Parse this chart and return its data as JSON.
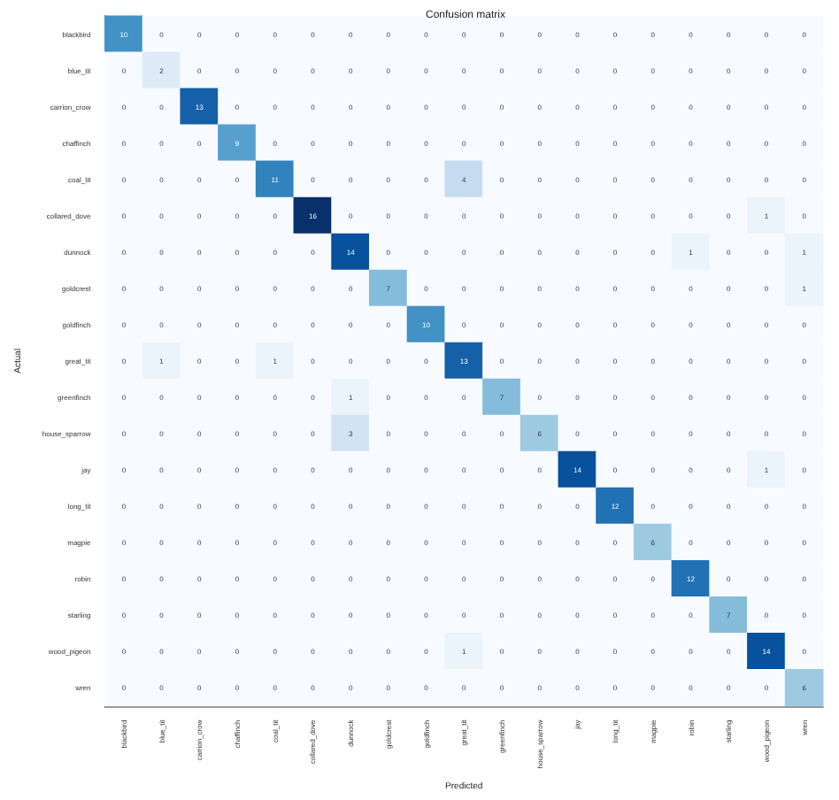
{
  "chart_data": {
    "type": "heatmap",
    "title": "Confusion matrix",
    "xlabel": "Predicted",
    "ylabel": "Actual",
    "categories": [
      "blackbird",
      "blue_tit",
      "carrion_crow",
      "chaffinch",
      "coal_tit",
      "collared_dove",
      "dunnock",
      "goldcrest",
      "goldfinch",
      "great_tit",
      "greenfinch",
      "house_sparrow",
      "jay",
      "long_tit",
      "magpie",
      "robin",
      "starling",
      "wood_pigeon",
      "wren"
    ],
    "y_categories": [
      "blackbird",
      "blue_tit",
      "carrion_crow",
      "chaffinch",
      "coal_tit",
      "collared_dove",
      "dunnock",
      "goldcrest",
      "goldfinch",
      "great_tit",
      "greenfinch",
      "house_sparrow",
      "jay",
      "long_tit",
      "magpie",
      "robin",
      "starling",
      "wood_pigeon",
      "wren"
    ],
    "cells": [
      [
        10,
        0,
        0,
        0,
        0,
        0,
        0,
        0,
        0,
        0,
        0,
        0,
        0,
        0,
        0,
        0,
        0,
        0,
        0
      ],
      [
        0,
        2,
        0,
        0,
        0,
        0,
        0,
        0,
        0,
        0,
        0,
        0,
        0,
        0,
        0,
        0,
        0,
        0,
        0
      ],
      [
        0,
        0,
        13,
        0,
        0,
        0,
        0,
        0,
        0,
        0,
        0,
        0,
        0,
        0,
        0,
        0,
        0,
        0,
        0
      ],
      [
        0,
        0,
        0,
        9,
        0,
        0,
        0,
        0,
        0,
        0,
        0,
        0,
        0,
        0,
        0,
        0,
        0,
        0,
        0
      ],
      [
        0,
        0,
        0,
        0,
        11,
        0,
        0,
        0,
        0,
        4,
        0,
        0,
        0,
        0,
        0,
        0,
        0,
        0,
        0
      ],
      [
        0,
        0,
        0,
        0,
        0,
        16,
        0,
        0,
        0,
        0,
        0,
        0,
        0,
        0,
        0,
        0,
        0,
        1,
        0
      ],
      [
        0,
        0,
        0,
        0,
        0,
        0,
        14,
        0,
        0,
        0,
        0,
        0,
        0,
        0,
        0,
        1,
        0,
        0,
        1
      ],
      [
        0,
        0,
        0,
        0,
        0,
        0,
        0,
        7,
        0,
        0,
        0,
        0,
        0,
        0,
        0,
        0,
        0,
        0,
        1
      ],
      [
        0,
        0,
        0,
        0,
        0,
        0,
        0,
        0,
        10,
        0,
        0,
        0,
        0,
        0,
        0,
        0,
        0,
        0,
        0
      ],
      [
        0,
        1,
        0,
        0,
        1,
        0,
        0,
        0,
        0,
        13,
        0,
        0,
        0,
        0,
        0,
        0,
        0,
        0,
        0
      ],
      [
        0,
        0,
        0,
        0,
        0,
        0,
        1,
        0,
        0,
        0,
        7,
        0,
        0,
        0,
        0,
        0,
        0,
        0,
        0
      ],
      [
        0,
        0,
        0,
        0,
        0,
        0,
        3,
        0,
        0,
        0,
        0,
        6,
        0,
        0,
        0,
        0,
        0,
        0,
        0
      ],
      [
        0,
        0,
        0,
        0,
        0,
        0,
        0,
        0,
        0,
        0,
        0,
        0,
        14,
        0,
        0,
        0,
        0,
        1,
        0
      ],
      [
        0,
        0,
        0,
        0,
        0,
        0,
        0,
        0,
        0,
        0,
        0,
        0,
        0,
        12,
        0,
        0,
        0,
        0,
        0
      ],
      [
        0,
        0,
        0,
        0,
        0,
        0,
        0,
        0,
        0,
        0,
        0,
        0,
        0,
        0,
        6,
        0,
        0,
        0,
        0
      ],
      [
        0,
        0,
        0,
        0,
        0,
        0,
        0,
        0,
        0,
        0,
        0,
        0,
        0,
        0,
        0,
        12,
        0,
        0,
        0
      ],
      [
        0,
        0,
        0,
        0,
        0,
        0,
        0,
        0,
        0,
        0,
        0,
        0,
        0,
        0,
        0,
        0,
        7,
        0,
        0
      ],
      [
        0,
        0,
        0,
        0,
        0,
        0,
        0,
        0,
        0,
        1,
        0,
        0,
        0,
        0,
        0,
        0,
        0,
        14,
        0
      ],
      [
        0,
        0,
        0,
        0,
        0,
        0,
        0,
        0,
        0,
        0,
        0,
        0,
        0,
        0,
        0,
        0,
        0,
        0,
        6
      ]
    ],
    "data_labels": true
  }
}
